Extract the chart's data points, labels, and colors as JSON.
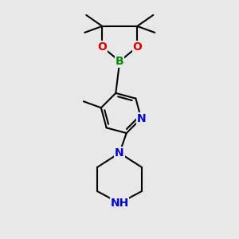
{
  "background_color": "#e8e8e8",
  "bond_color": "#000000",
  "bond_width": 1.5,
  "atom_colors": {
    "N_pyridine": "#0000cc",
    "N_piperazine_top": "#0000cc",
    "N_piperazine_bottom": "#0000cc",
    "B": "#008800",
    "O": "#dd0000"
  },
  "font_size": 9,
  "fig_width": 3.0,
  "fig_height": 3.0,
  "dpi": 100,
  "xlim": [
    0,
    300
  ],
  "ylim": [
    0,
    300
  ]
}
